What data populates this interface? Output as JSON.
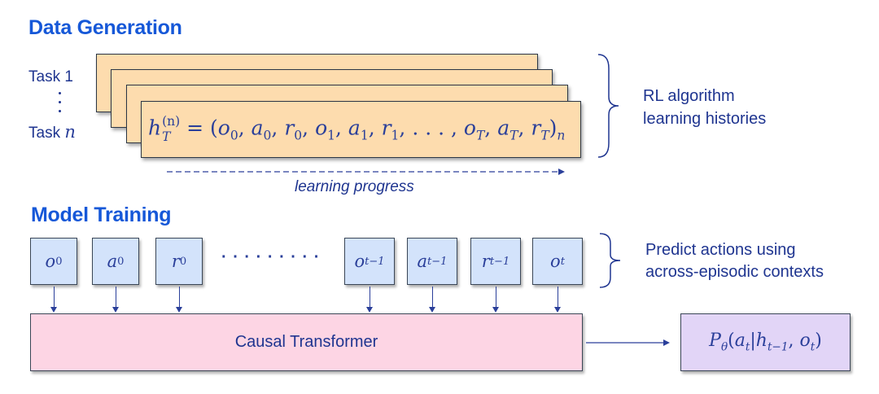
{
  "data_generation": {
    "title": "Data Generation",
    "task_first": "Task 1",
    "task_last_prefix": "Task",
    "task_last_var": "n",
    "formula": [
      {
        "base": "h",
        "sub": "T",
        "sup": "(n)"
      },
      {
        "plain": " = ("
      },
      {
        "base": "o",
        "sub": "0"
      },
      {
        "plain": ", "
      },
      {
        "base": "a",
        "sub": "0"
      },
      {
        "plain": ", "
      },
      {
        "base": "r",
        "sub": "0"
      },
      {
        "plain": ", "
      },
      {
        "base": "o",
        "sub": "1"
      },
      {
        "plain": ", "
      },
      {
        "base": "a",
        "sub": "1"
      },
      {
        "plain": ", "
      },
      {
        "base": "r",
        "sub": "1"
      },
      {
        "plain": ", . . . , "
      },
      {
        "base": "o",
        "sub": "T"
      },
      {
        "plain": ", "
      },
      {
        "base": "a",
        "sub": "T"
      },
      {
        "plain": ", "
      },
      {
        "base": "r",
        "sub": "T"
      },
      {
        "plain": ")"
      },
      {
        "base": "",
        "sub": "n"
      }
    ],
    "annotation_line1": "RL algorithm",
    "annotation_line2": "learning histories",
    "progress_label": "learning progress"
  },
  "model_training": {
    "title": "Model Training",
    "tokens": [
      {
        "base": "o",
        "sub": "0"
      },
      {
        "base": "a",
        "sub": "0"
      },
      {
        "base": "r",
        "sub": "0"
      },
      {
        "base": "o",
        "sub": "t−1"
      },
      {
        "base": "a",
        "sub": "t−1"
      },
      {
        "base": "r",
        "sub": "t−1"
      },
      {
        "base": "o",
        "sub": "t"
      }
    ],
    "ellipsis": "· · · · · · · · ·",
    "transformer_label": "Causal Transformer",
    "output_formula": [
      {
        "base": "P",
        "sub": "θ"
      },
      {
        "plain": "("
      },
      {
        "base": "a",
        "sub": "t"
      },
      {
        "plain": "|"
      },
      {
        "base": "h",
        "sub": "t−1"
      },
      {
        "plain": ", "
      },
      {
        "base": "o",
        "sub": "t"
      },
      {
        "plain": ")"
      }
    ],
    "annotation_line1": "Predict actions using",
    "annotation_line2": "across-episodic contexts"
  },
  "colors": {
    "heading": "#1658d8",
    "text": "#1f3590",
    "history_card": "#fddcae",
    "token_box": "#d3e3fb",
    "transformer_box": "#fdd5e4",
    "output_box": "#e2d5f7"
  }
}
